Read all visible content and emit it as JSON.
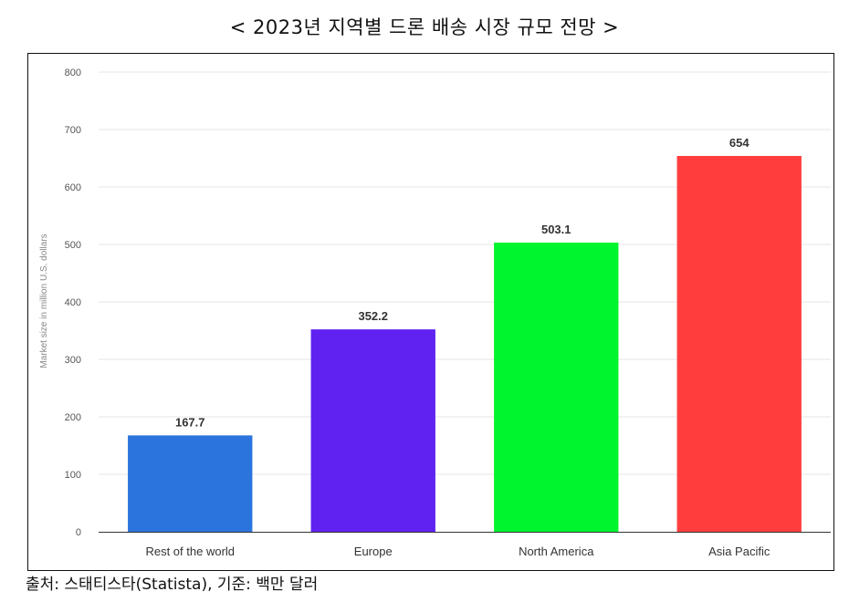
{
  "header": {
    "title": "< 2023년 지역별 드론 배송 시장 규모 전망 >"
  },
  "footer": {
    "source": "출처: 스태티스타(Statista), 기준: 백만 달러"
  },
  "chart_data": {
    "type": "bar",
    "title": "< 2023년 지역별 드론 배송 시장 규모 전망 >",
    "categories": [
      "Rest of the world",
      "Europe",
      "North America",
      "Asia Pacific"
    ],
    "values": [
      167.7,
      352.2,
      503.1,
      654
    ],
    "value_labels": [
      "167.7",
      "352.2",
      "503.1",
      "654"
    ],
    "colors": [
      "#2b74dd",
      "#5f22f0",
      "#00f52e",
      "#ff3d3d"
    ],
    "ylabel": "Market size in million U.S. dollars",
    "xlabel": "",
    "ylim": [
      0,
      800
    ],
    "yticks": [
      0,
      100,
      200,
      300,
      400,
      500,
      600,
      700,
      800
    ],
    "grid": true,
    "gridline_color": "#e6e6e6",
    "legend": "none"
  }
}
